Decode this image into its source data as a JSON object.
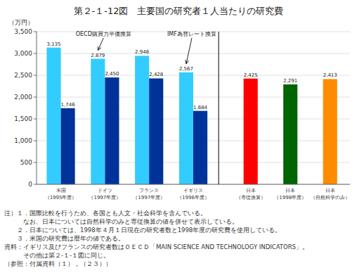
{
  "chart_data": {
    "type": "bar",
    "title": "第２-１-12図　主要国の研究者１人当たりの研究費",
    "ylabel": "（万円）",
    "categories": [
      "米国\n（1995年度）",
      "ドイツ\n（1997年度）",
      "フランス\n（1997年度）",
      "イギリス\n（1996年度）",
      "日本\n（専従換算）",
      "日本\n（1998年度）",
      "日本\n（自然科学のみ）"
    ],
    "series": [
      {
        "values": [
          3135,
          2879,
          2946,
          2567,
          2425,
          2291,
          2413
        ],
        "value_labels": [
          "3,135",
          "2,879",
          "2,946",
          "2,567",
          "2,425",
          "2,291",
          "2,413"
        ],
        "colors": [
          "#33CCFF",
          "#33CCFF",
          "#33CCFF",
          "#33CCFF",
          "#FF0000",
          "#006400",
          "#FF8C00"
        ]
      },
      {
        "values": [
          1746,
          2450,
          2428,
          1684,
          null,
          null,
          null
        ],
        "value_labels": [
          "1,746",
          "2,450",
          "2,428",
          "1,684",
          null,
          null,
          null
        ],
        "color": "#003399"
      }
    ],
    "ylim": [
      0,
      3500
    ],
    "yticks": [
      0,
      500,
      {
        "value": 1000,
        "label": "1,000"
      },
      {
        "value": 1500,
        "label": "1,500"
      },
      {
        "value": 2000,
        "label": "2,000"
      },
      {
        "value": 2500,
        "label": "2,500"
      },
      {
        "value": 3000,
        "label": "3,000"
      },
      {
        "value": 3500,
        "label": "3,500"
      }
    ],
    "grid": true,
    "data_labels": true,
    "annotations": [
      {
        "text": "OECD購買力平価換算"
      },
      {
        "text": "IMF為替レート換算"
      }
    ],
    "notes": [
      "注）１．国際比較を行うため、各国とも人文・社会科学を含んでいる。",
      "　　　なお、日本については自然科学のみと専従換算の値を併せて表示している。",
      "　　２．日本については、1998年４月１日現在の研究者数と1998年度の研究費を使用している。",
      "　　３．米国の研究費は暦年の値である。",
      "資料：イギリス及びフランスの研究者数はＯＥＣＤ「MAIN SCIENCE AND TECHNOLOGY INDICATORS」。",
      "　　　その他は第２-１-１図に同じ。",
      "（参照：付属資料（１），（２３））"
    ]
  }
}
